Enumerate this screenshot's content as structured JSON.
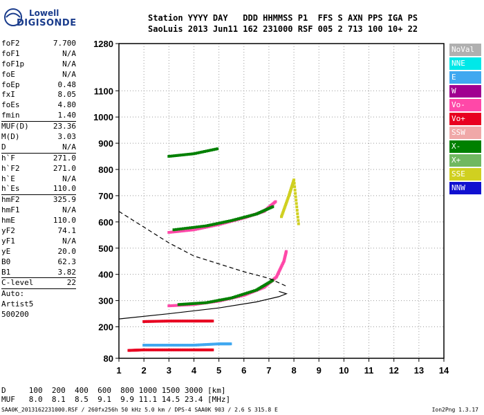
{
  "logo": {
    "top": "Lowell",
    "bottom": "DIGISONDE"
  },
  "header": {
    "line1": "Station YYYY DAY   DDD HHMMSS P1  FFS S AXN PPS IGA PS",
    "line2": "SaoLuis 2013 Jun11 162 231000 RSF 005 2 713 100 10+ 22"
  },
  "params": {
    "group1": [
      {
        "k": "foF2",
        "v": "7.700"
      },
      {
        "k": "foF1",
        "v": "N/A"
      },
      {
        "k": "foF1p",
        "v": "N/A"
      },
      {
        "k": "foE",
        "v": "N/A"
      },
      {
        "k": "foEp",
        "v": "0.48"
      },
      {
        "k": "fxI",
        "v": "8.05"
      },
      {
        "k": "foEs",
        "v": "4.80"
      },
      {
        "k": "fmin",
        "v": "1.40"
      }
    ],
    "group2": [
      {
        "k": "MUF(D)",
        "v": "23.36"
      },
      {
        "k": "M(D)",
        "v": "3.03"
      },
      {
        "k": "D",
        "v": "N/A"
      }
    ],
    "group3": [
      {
        "k": "h`F",
        "v": "271.0"
      },
      {
        "k": "h`F2",
        "v": "271.0"
      },
      {
        "k": "h`E",
        "v": "N/A"
      },
      {
        "k": "h`Es",
        "v": "110.0"
      }
    ],
    "group4": [
      {
        "k": "hmF2",
        "v": "325.9"
      },
      {
        "k": "hmF1",
        "v": "N/A"
      },
      {
        "k": "hmE",
        "v": "110.0"
      },
      {
        "k": "yF2",
        "v": "74.1"
      },
      {
        "k": "yF1",
        "v": "N/A"
      },
      {
        "k": "yE",
        "v": "20.0"
      },
      {
        "k": "B0",
        "v": "62.3"
      },
      {
        "k": "B1",
        "v": "3.82"
      }
    ],
    "group5": [
      {
        "k": "C-level",
        "v": "22"
      }
    ],
    "auto": [
      "Auto:",
      "Artist5",
      "500200"
    ]
  },
  "legend": [
    {
      "label": "NoVal",
      "color": "#b0b0b0",
      "text": "#ffffff"
    },
    {
      "label": "NNE",
      "color": "#00e8e8",
      "text": "#ffffff"
    },
    {
      "label": "E",
      "color": "#40a8f0",
      "text": "#ffffff"
    },
    {
      "label": "W",
      "color": "#a00090",
      "text": "#ffffff"
    },
    {
      "label": "Vo-",
      "color": "#ff48a8",
      "text": "#ffffff"
    },
    {
      "label": "Vo+",
      "color": "#e80020",
      "text": "#ffffff"
    },
    {
      "label": "SSW",
      "color": "#f0a8a8",
      "text": "#ffffff"
    },
    {
      "label": "X-",
      "color": "#008000",
      "text": "#ffffff"
    },
    {
      "label": "X+",
      "color": "#70b860",
      "text": "#ffffff"
    },
    {
      "label": "SSE",
      "color": "#d0d020",
      "text": "#ffffff"
    },
    {
      "label": "NNW",
      "color": "#1010d0",
      "text": "#ffffff"
    }
  ],
  "dmuf": {
    "line1": "D     100  200  400  600  800 1000 1500 3000 [km]",
    "line2": "MUF   8.0  8.1  8.5  9.1  9.9 11.1 14.5 23.4 [MHz]"
  },
  "footer": {
    "left": "SAA0K_2013162231000.RSF / 260fx256h 50 kHz 5.0 km / DPS-4 SAA0K 903 / 2.6 S 315.8 E",
    "right": "Ion2Png 1.3.17"
  },
  "chart_data": {
    "type": "scatter",
    "xlim": [
      1,
      14
    ],
    "ylim": [
      80,
      1280
    ],
    "xticks": [
      1,
      2,
      3,
      4,
      5,
      6,
      7,
      8,
      9,
      10,
      11,
      12,
      13,
      14
    ],
    "yticks": [
      80,
      200,
      300,
      400,
      500,
      600,
      700,
      800,
      900,
      1000,
      1100,
      1280
    ],
    "grid": "dotted",
    "traces": [
      {
        "name": "F2 O-trace",
        "color": "#ff48a8",
        "points": [
          [
            3.0,
            280
          ],
          [
            4.0,
            285
          ],
          [
            5.0,
            298
          ],
          [
            6.0,
            320
          ],
          [
            6.8,
            350
          ],
          [
            7.3,
            390
          ],
          [
            7.6,
            450
          ],
          [
            7.7,
            490
          ]
        ]
      },
      {
        "name": "F2 X-trace",
        "color": "#008000",
        "points": [
          [
            3.4,
            285
          ],
          [
            4.5,
            292
          ],
          [
            5.5,
            310
          ],
          [
            6.5,
            340
          ],
          [
            7.2,
            380
          ]
        ]
      },
      {
        "name": "2F2 O",
        "color": "#ff48a8",
        "points": [
          [
            3.0,
            560
          ],
          [
            4.0,
            570
          ],
          [
            5.0,
            590
          ],
          [
            6.0,
            615
          ],
          [
            6.8,
            640
          ],
          [
            7.3,
            680
          ]
        ]
      },
      {
        "name": "2F2 X",
        "color": "#008000",
        "points": [
          [
            3.2,
            570
          ],
          [
            4.5,
            585
          ],
          [
            5.5,
            605
          ],
          [
            6.5,
            630
          ],
          [
            7.2,
            660
          ]
        ]
      },
      {
        "name": "Es",
        "color": "#e80020",
        "points": [
          [
            1.4,
            110
          ],
          [
            2.0,
            112
          ],
          [
            3.0,
            112
          ],
          [
            4.0,
            112
          ],
          [
            4.8,
            112
          ]
        ]
      },
      {
        "name": "Es-E",
        "color": "#40a8f0",
        "points": [
          [
            2.0,
            130
          ],
          [
            3.0,
            130
          ],
          [
            4.0,
            130
          ],
          [
            5.0,
            135
          ],
          [
            5.5,
            135
          ]
        ]
      },
      {
        "name": "2Es",
        "color": "#e80020",
        "points": [
          [
            2.0,
            220
          ],
          [
            3.0,
            222
          ],
          [
            4.0,
            222
          ],
          [
            4.8,
            222
          ]
        ]
      },
      {
        "name": "3F",
        "color": "#008000",
        "points": [
          [
            3.0,
            850
          ],
          [
            4.0,
            860
          ],
          [
            5.0,
            880
          ]
        ]
      },
      {
        "name": "SSE",
        "color": "#d0d020",
        "points": [
          [
            7.5,
            620
          ],
          [
            7.8,
            700
          ],
          [
            8.0,
            760
          ],
          [
            8.2,
            580
          ]
        ]
      }
    ],
    "profile": [
      [
        1.0,
        230
      ],
      [
        3.0,
        250
      ],
      [
        5.0,
        272
      ],
      [
        6.5,
        295
      ],
      [
        7.4,
        315
      ],
      [
        7.7,
        326
      ],
      [
        7.4,
        335
      ]
    ],
    "dashed": [
      [
        1.0,
        640
      ],
      [
        2.0,
        580
      ],
      [
        3.0,
        520
      ],
      [
        4.0,
        470
      ],
      [
        5.0,
        440
      ],
      [
        6.0,
        410
      ],
      [
        7.0,
        385
      ],
      [
        7.7,
        355
      ]
    ]
  }
}
